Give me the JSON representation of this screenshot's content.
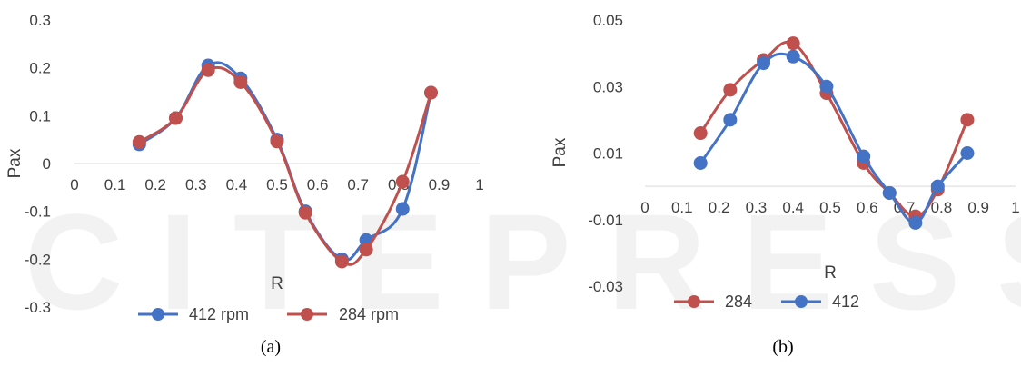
{
  "watermark": "SCITEPRESS",
  "chart_data": [
    {
      "type": "line",
      "caption": "(a)",
      "xlabel": "R",
      "ylabel": "Pax",
      "xlim": [
        0,
        1
      ],
      "ylim": [
        -0.3,
        0.3
      ],
      "xticks": [
        0,
        0.1,
        0.2,
        0.3,
        0.4,
        0.5,
        0.6,
        0.7,
        0.8,
        0.9,
        1
      ],
      "yticks": [
        0.3,
        0.2,
        0.1,
        0,
        -0.1,
        -0.2,
        -0.3
      ],
      "smooth": true,
      "markers": true,
      "legend_position": "bottom",
      "series": [
        {
          "name": "412 rpm",
          "color": "#4472C4",
          "x": [
            0.16,
            0.25,
            0.33,
            0.41,
            0.5,
            0.57,
            0.66,
            0.72,
            0.81,
            0.88
          ],
          "y": [
            0.04,
            0.095,
            0.205,
            0.178,
            0.05,
            -0.1,
            -0.2,
            -0.16,
            -0.095,
            0.148
          ]
        },
        {
          "name": "284 rpm",
          "color": "#C0504D",
          "x": [
            0.16,
            0.25,
            0.33,
            0.41,
            0.5,
            0.57,
            0.66,
            0.72,
            0.81,
            0.88
          ],
          "y": [
            0.045,
            0.095,
            0.195,
            0.17,
            0.046,
            -0.103,
            -0.205,
            -0.18,
            -0.038,
            0.148
          ]
        }
      ]
    },
    {
      "type": "line",
      "caption": "(b)",
      "xlabel": "R",
      "ylabel": "Pax",
      "xlim": [
        0,
        1
      ],
      "ylim": [
        -0.03,
        0.05
      ],
      "xticks": [
        0,
        0.1,
        0.2,
        0.3,
        0.4,
        0.5,
        0.6,
        0.7,
        0.8,
        0.9,
        1
      ],
      "xticklabels": [
        "0",
        "0.1",
        "0.2",
        "0.3",
        "0.4",
        "0.5",
        "0.6",
        "0.7",
        "0.8",
        "0.9",
        "1"
      ],
      "yticks": [
        0.05,
        0.03,
        0.01,
        -0.01,
        -0.03
      ],
      "smooth": true,
      "markers": true,
      "legend_position": "bottom",
      "series": [
        {
          "name": "284",
          "color": "#C0504D",
          "x": [
            0.15,
            0.23,
            0.32,
            0.4,
            0.49,
            0.59,
            0.66,
            0.73,
            0.79,
            0.87
          ],
          "y": [
            0.016,
            0.029,
            0.038,
            0.043,
            0.028,
            0.007,
            -0.002,
            -0.009,
            -0.001,
            0.02
          ]
        },
        {
          "name": "412",
          "color": "#4472C4",
          "x": [
            0.15,
            0.23,
            0.32,
            0.4,
            0.49,
            0.59,
            0.66,
            0.73,
            0.79,
            0.87
          ],
          "y": [
            0.007,
            0.02,
            0.037,
            0.039,
            0.03,
            0.009,
            -0.002,
            -0.011,
            0.0,
            0.01
          ]
        }
      ]
    }
  ]
}
